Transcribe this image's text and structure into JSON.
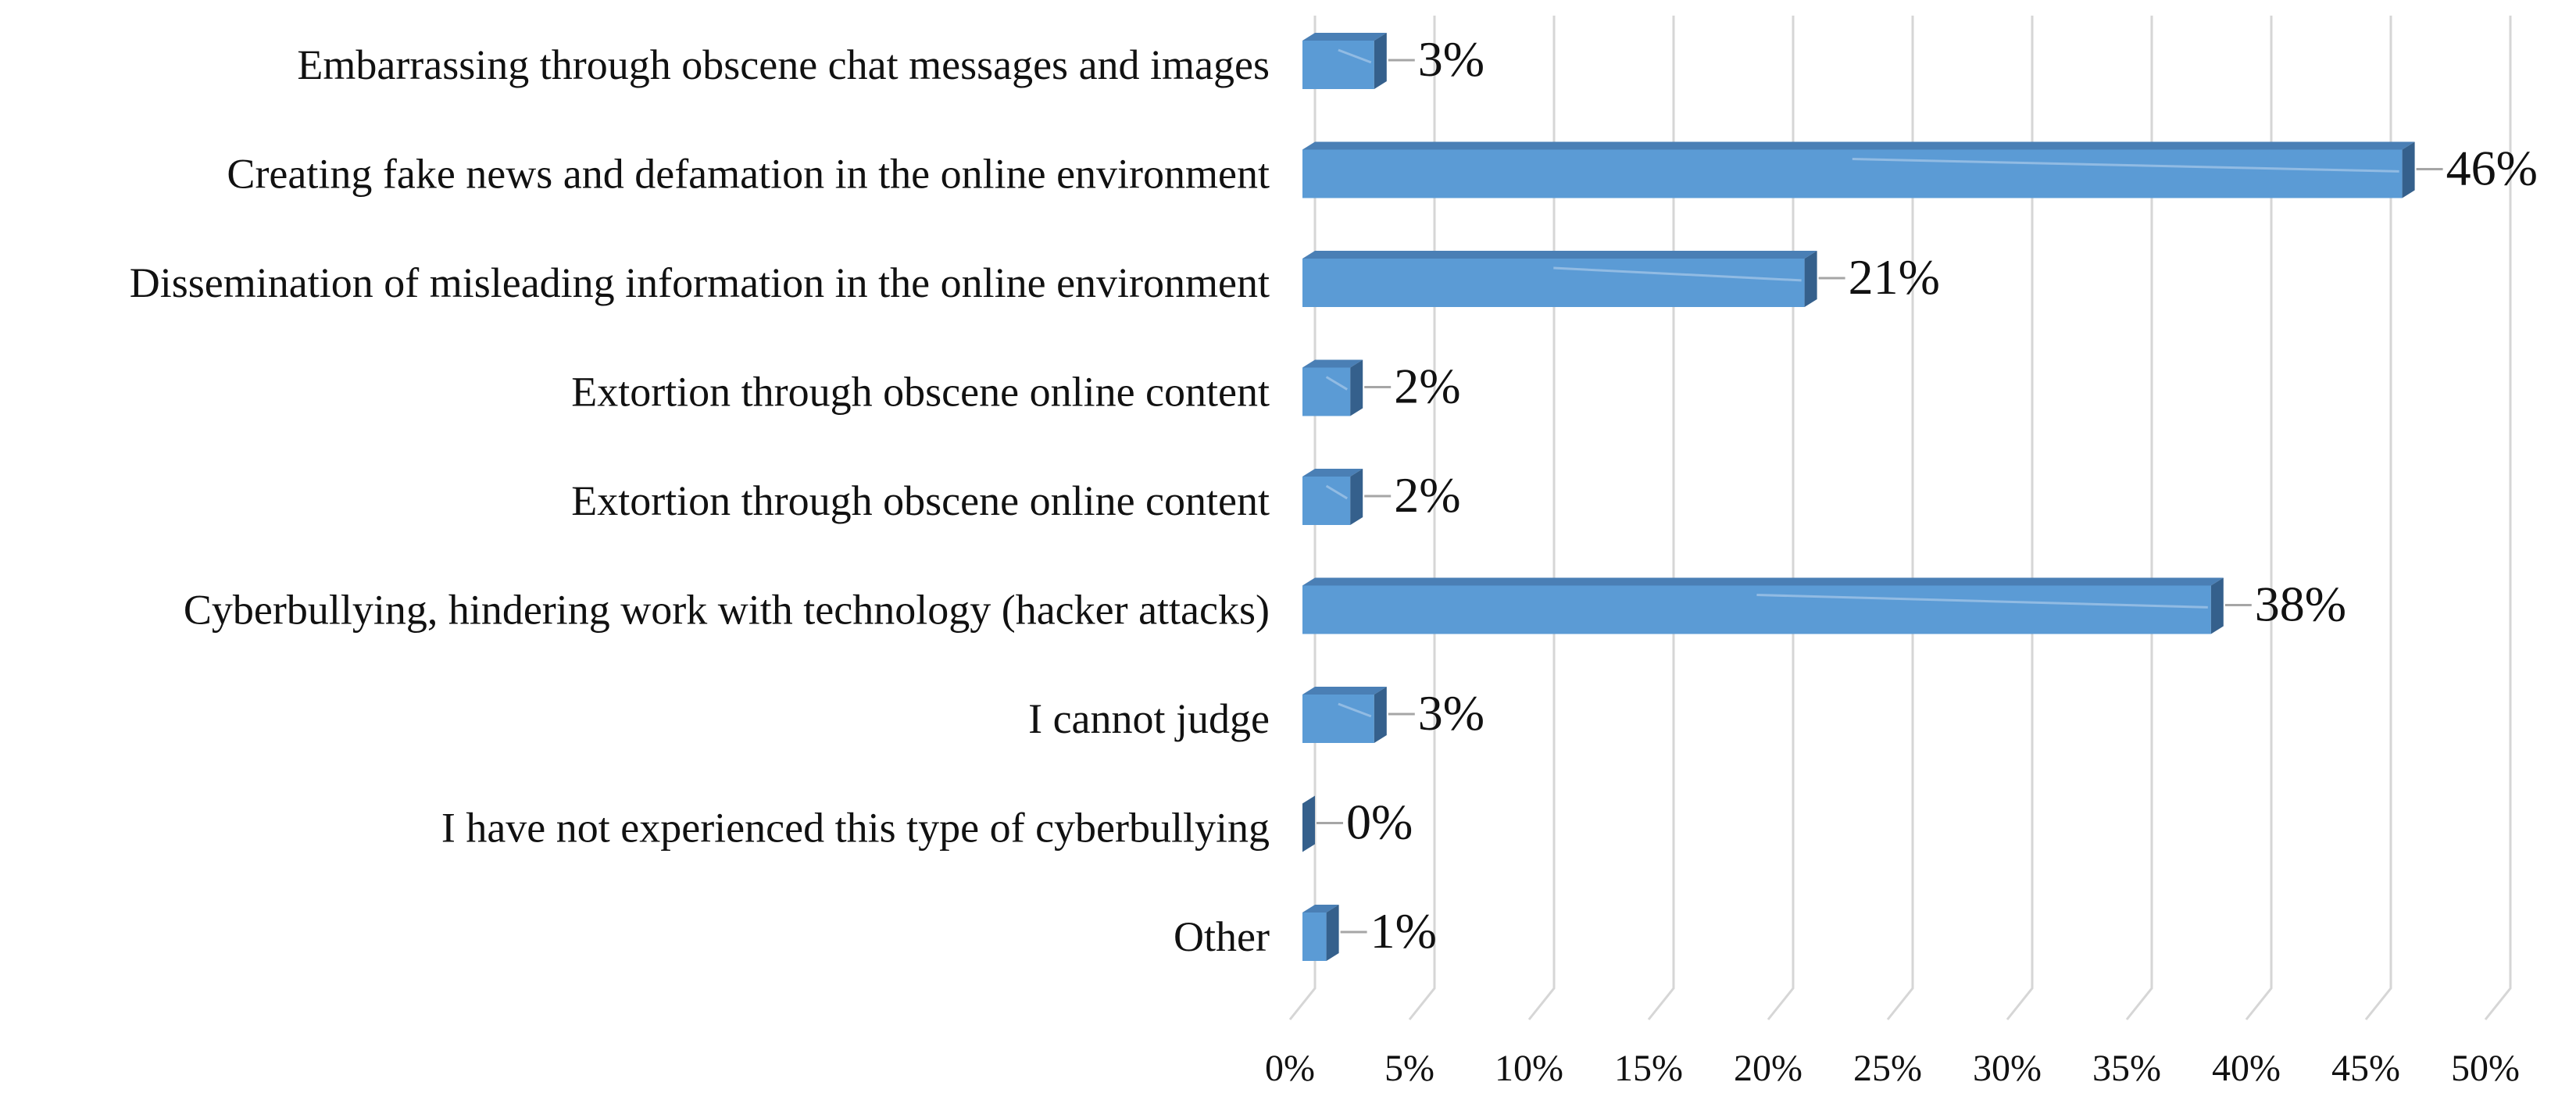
{
  "chart_data": {
    "type": "bar",
    "orientation": "horizontal",
    "categories": [
      "Embarrassing through obscene chat messages and images",
      "Creating fake news and defamation in the online environment",
      "Dissemination of misleading information in the online environment",
      "Extortion through obscene online content",
      "Extortion through obscene online content",
      "Cyberbullying, hindering work with technology (hacker attacks)",
      "I cannot judge",
      "I have not experienced this type of cyberbullying",
      "Other"
    ],
    "values": [
      3,
      46,
      21,
      2,
      2,
      38,
      3,
      0,
      1
    ],
    "value_labels": [
      "3%",
      "46%",
      "21%",
      "2%",
      "2%",
      "38%",
      "3%",
      "0%",
      "1%"
    ],
    "xlim": [
      0,
      50
    ],
    "x_ticks": [
      0,
      5,
      10,
      15,
      20,
      25,
      30,
      35,
      40,
      45,
      50
    ],
    "x_tick_labels": [
      "0%",
      "5%",
      "10%",
      "15%",
      "20%",
      "25%",
      "30%",
      "35%",
      "40%",
      "45%",
      "50%"
    ],
    "title": "",
    "xlabel": "",
    "ylabel": "",
    "grid": true,
    "style": "3d",
    "colors": {
      "bar_front": "#5b9bd5",
      "bar_top": "#4a7fb5",
      "bar_side": "#35608c",
      "grid": "#d6d6d6"
    }
  }
}
